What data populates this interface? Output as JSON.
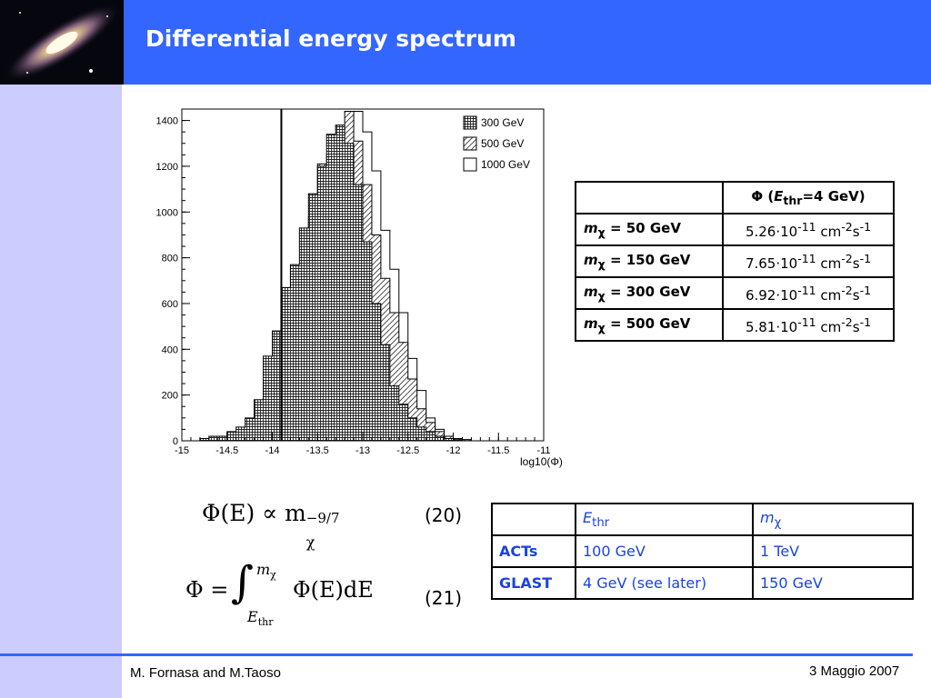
{
  "slide": {
    "title": "Differential energy spectrum",
    "logo_icon": "andromeda-galaxy-image",
    "colors": {
      "header": "#3366ff",
      "sidebar": "#ccccff",
      "table2_text": "#1a44e0"
    }
  },
  "chart_data": {
    "type": "histogram",
    "xlabel": "log10(Φ)",
    "xlim": [
      -15,
      -11
    ],
    "ylim": [
      0,
      1450
    ],
    "x_ticks": [
      "-15",
      "-14.5",
      "-14",
      "-13.5",
      "-13",
      "-12.5",
      "-12",
      "-11.5",
      "-11"
    ],
    "y_ticks": [
      "0",
      "200",
      "400",
      "600",
      "800",
      "1000",
      "1200",
      "1400"
    ],
    "bin_width": 0.1,
    "bin_start": -14.8,
    "legend": [
      "300 GeV",
      "500 GeV",
      "1000 GeV"
    ],
    "legend_position": "top-right",
    "vertical_line_x": -13.9,
    "series": [
      {
        "name": "300 GeV",
        "fill": "crosshatch",
        "start": -14.8,
        "values": [
          10,
          20,
          20,
          40,
          60,
          100,
          180,
          370,
          480,
          670,
          770,
          930,
          1080,
          1200,
          1340,
          1380,
          1300,
          1120,
          870,
          600,
          420,
          240,
          160,
          100,
          60,
          40,
          20,
          10,
          5
        ]
      },
      {
        "name": "500 GeV",
        "fill": "diagonal",
        "start": -14.8,
        "values": [
          3,
          5,
          10,
          20,
          40,
          60,
          120,
          260,
          350,
          460,
          580,
          760,
          980,
          1210,
          1250,
          1290,
          1440,
          1310,
          1120,
          900,
          710,
          560,
          430,
          270,
          140,
          80,
          40,
          20,
          10,
          5
        ]
      },
      {
        "name": "1000 GeV",
        "fill": "open",
        "start": -14.6,
        "values": [
          5,
          10,
          20,
          40,
          60,
          100,
          180,
          290,
          430,
          600,
          830,
          1040,
          1160,
          1320,
          1380,
          1440,
          1350,
          1180,
          920,
          750,
          560,
          360,
          220,
          100,
          50,
          20,
          10,
          5
        ]
      }
    ]
  },
  "table1": {
    "header": {
      "phi": "Φ",
      "paren_open": " (",
      "E": "E",
      "sub": "thr",
      "rest": "=4 GeV)"
    },
    "m_label": "m",
    "chi": "χ",
    "rows": [
      {
        "mass": " = 50 GeV",
        "mant": "5.26·10",
        "exp": "-11",
        "unit": " cm",
        "u1": "-2",
        "s": "s",
        "u2": "-1"
      },
      {
        "mass": " = 150 GeV",
        "mant": "7.65·10",
        "exp": "-11",
        "unit": " cm",
        "u1": "-2",
        "s": "s",
        "u2": "-1"
      },
      {
        "mass": " = 300 GeV",
        "mant": "6.92·10",
        "exp": "-11",
        "unit": " cm",
        "u1": "-2",
        "s": "s",
        "u2": "-1"
      },
      {
        "mass": " = 500 GeV",
        "mant": "5.81·10",
        "exp": "-11",
        "unit": " cm",
        "u1": "-2",
        "s": "s",
        "u2": "-1"
      }
    ]
  },
  "table2": {
    "header": {
      "E": "E",
      "E_sub": "thr",
      "m": "m",
      "m_sub": "χ"
    },
    "rows": [
      {
        "name": "ACTs",
        "ethr": "100 GeV",
        "mchi": "1 TeV"
      },
      {
        "name": "GLAST",
        "ethr": "4 GeV (see later)",
        "mchi": "150 GeV"
      }
    ]
  },
  "equations": {
    "eq20": "(20)",
    "eq21": "(21)",
    "f1": {
      "lhs": "Φ(E) ∝ m",
      "sup": "−9/7",
      "sub": "χ"
    },
    "f2": {
      "lhs": "Φ = ",
      "int": "∫",
      "upper": "m",
      "upper_sub": "χ",
      "lower": "E",
      "lower_sub": "thr",
      "body": "Φ(E)dE"
    }
  },
  "footer": {
    "left": "M. Fornasa and M.Taoso",
    "right": "3 Maggio 2007"
  }
}
